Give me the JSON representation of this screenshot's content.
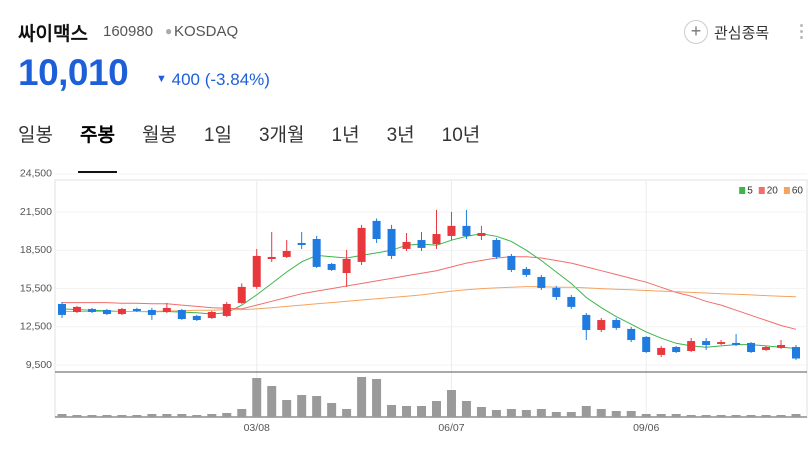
{
  "header": {
    "name": "싸이맥스",
    "code": "160980",
    "market": "KOSDAQ",
    "watch_button": "관심종목"
  },
  "price": {
    "current": "10,010",
    "change": "400",
    "change_pct": "(-3.84%)"
  },
  "tabs": [
    "일봉",
    "주봉",
    "월봉",
    "1일",
    "3개월",
    "1년",
    "3년",
    "10년"
  ],
  "selected_tab": 1,
  "chart_data": {
    "type": "candlestick",
    "categories": [
      null,
      null,
      null,
      null,
      null,
      null,
      null,
      null,
      null,
      null,
      null,
      null,
      null,
      "03/08",
      null,
      null,
      null,
      null,
      null,
      null,
      null,
      null,
      null,
      null,
      null,
      null,
      "06/07",
      null,
      null,
      null,
      null,
      null,
      null,
      null,
      null,
      null,
      null,
      null,
      null,
      "09/06",
      null,
      null,
      null,
      null,
      null,
      null,
      null,
      null,
      null,
      null
    ],
    "open": [
      14290,
      13660,
      13900,
      13820,
      13500,
      13900,
      13820,
      13660,
      13820,
      13350,
      13190,
      13350,
      14370,
      15630,
      17820,
      17980,
      19080,
      19390,
      17430,
      16720,
      17590,
      20810,
      20180,
      18610,
      19310,
      18990,
      19630,
      20420,
      19630,
      19310,
      18060,
      17040,
      16410,
      15550,
      14840,
      13430,
      12250,
      13030,
      12330,
      11700,
      10290,
      10910,
      10600,
      11380,
      11150,
      11230,
      11230,
      10680,
      10840,
      10910
    ],
    "high": [
      14450,
      14140,
      13980,
      13900,
      13980,
      14000,
      13980,
      14370,
      13900,
      13430,
      13740,
      14450,
      15910,
      18610,
      19940,
      19310,
      19940,
      19630,
      17510,
      18530,
      20500,
      21000,
      20500,
      19860,
      19940,
      21670,
      21520,
      21670,
      20420,
      19470,
      18220,
      17200,
      16570,
      15710,
      15000,
      13580,
      13190,
      13190,
      12490,
      11780,
      11000,
      11000,
      11620,
      11620,
      11460,
      11930,
      11300,
      10990,
      11460,
      11070
    ],
    "low": [
      13190,
      13580,
      13580,
      13420,
      13420,
      13660,
      13040,
      13580,
      13040,
      12960,
      13110,
      13270,
      14290,
      15470,
      17590,
      17900,
      18610,
      17120,
      16880,
      15630,
      17350,
      19080,
      17820,
      18450,
      18450,
      18610,
      19310,
      19390,
      19310,
      17820,
      16800,
      16410,
      15390,
      14600,
      13900,
      11460,
      12090,
      12250,
      11300,
      10440,
      10130,
      10440,
      10520,
      10680,
      11070,
      10990,
      10440,
      10600,
      10760,
      9900
    ],
    "close": [
      13430,
      14060,
      13660,
      13500,
      13900,
      13740,
      13430,
      13980,
      13110,
      13030,
      13660,
      14290,
      15630,
      18060,
      17980,
      18450,
      18920,
      17200,
      16960,
      17820,
      20260,
      19390,
      18060,
      19160,
      18690,
      19780,
      20420,
      19630,
      19860,
      17980,
      16960,
      16570,
      15550,
      14840,
      14060,
      12250,
      13030,
      12410,
      11460,
      10520,
      10840,
      10520,
      11380,
      11070,
      11300,
      11070,
      10520,
      10910,
      11070,
      10010
    ],
    "up_color": "#e8383d",
    "down_color": "#1f7be0",
    "moving_averages": [
      {
        "name": "5",
        "color": "#3db54a",
        "values": [
          13900,
          13850,
          13800,
          13750,
          13700,
          13700,
          13680,
          13700,
          13650,
          13600,
          13500,
          13600,
          14200,
          15000,
          15900,
          16800,
          17600,
          18100,
          18000,
          17900,
          18100,
          18300,
          18500,
          18900,
          19000,
          18900,
          19300,
          19600,
          19800,
          19600,
          19200,
          18500,
          17700,
          16800,
          15900,
          14800,
          14000,
          13300,
          12700,
          12100,
          11600,
          11200,
          11000,
          10900,
          11000,
          11100,
          11100,
          11000,
          10900,
          10800
        ]
      },
      {
        "name": "20",
        "color": "#f06e6c",
        "values": [
          14400,
          14400,
          14400,
          14400,
          14350,
          14350,
          14300,
          14300,
          14200,
          14100,
          14000,
          13950,
          13900,
          14200,
          14500,
          14800,
          15100,
          15300,
          15500,
          15700,
          15900,
          16100,
          16300,
          16500,
          16700,
          16900,
          17200,
          17500,
          17700,
          17900,
          18000,
          18000,
          17900,
          17700,
          17500,
          17200,
          16900,
          16600,
          16300,
          16000,
          15600,
          15200,
          14900,
          14500,
          14200,
          13800,
          13400,
          13000,
          12600,
          12300
        ]
      },
      {
        "name": "60",
        "color": "#f5a35e",
        "values": [
          13700,
          13700,
          13700,
          13700,
          13700,
          13700,
          13700,
          13750,
          13750,
          13800,
          13800,
          13850,
          13850,
          13900,
          14000,
          14100,
          14200,
          14300,
          14400,
          14500,
          14600,
          14700,
          14800,
          14900,
          15000,
          15150,
          15300,
          15400,
          15500,
          15550,
          15600,
          15650,
          15650,
          15600,
          15600,
          15550,
          15500,
          15450,
          15400,
          15350,
          15300,
          15250,
          15200,
          15150,
          15100,
          15050,
          15000,
          14950,
          14900,
          14850
        ]
      }
    ],
    "volume": {
      "color": "#9a9a9a",
      "values": [
        3,
        2,
        2,
        2,
        2,
        2,
        3,
        3,
        3,
        2,
        3,
        4,
        8,
        39,
        31,
        17,
        22,
        21,
        14,
        8,
        40,
        38,
        12,
        11,
        11,
        16,
        27,
        16,
        10,
        7,
        8,
        7,
        8,
        5,
        5,
        11,
        8,
        6,
        6,
        3,
        3,
        3,
        2,
        2,
        2,
        2,
        2,
        2,
        2,
        3
      ]
    },
    "ylim": [
      8950,
      24650
    ],
    "yticks": [
      {
        "value": 24500,
        "label": "24,500"
      },
      {
        "value": 21500,
        "label": "21,500"
      },
      {
        "value": 18500,
        "label": "18,500"
      },
      {
        "value": 15500,
        "label": "15,500"
      },
      {
        "value": 12500,
        "label": "12,500"
      },
      {
        "value": 9500,
        "label": "9,500"
      }
    ],
    "grid": true,
    "legend": "top-right"
  }
}
